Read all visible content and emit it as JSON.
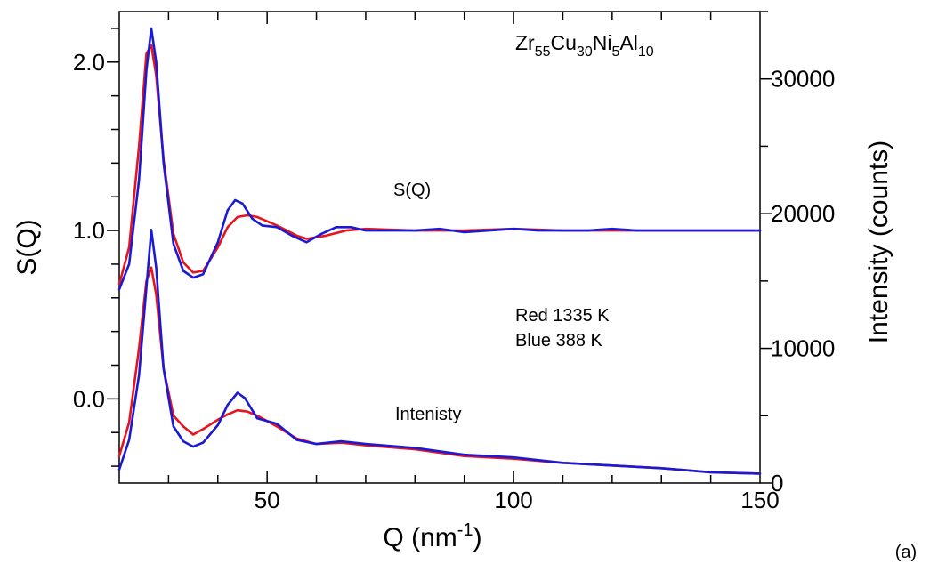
{
  "chart_data": {
    "type": "line",
    "title": "",
    "xlabel": {
      "base": "Q (nm",
      "sup": "-1",
      "end": ")"
    },
    "ylabel_left": "S(Q)",
    "ylabel_right": "Intensity (counts)",
    "xlim": [
      20,
      150
    ],
    "ylim_left": [
      -0.5,
      2.3
    ],
    "ylim_right": [
      0,
      35000
    ],
    "x_ticks": [
      50,
      100,
      150
    ],
    "x_tick_labels": [
      "50",
      "100",
      "150"
    ],
    "y_left_ticks": [
      0.0,
      1.0,
      2.0
    ],
    "y_left_tick_labels": [
      "0.0",
      "1.0",
      "2.0"
    ],
    "y_right_ticks": [
      0,
      10000,
      20000,
      30000
    ],
    "y_right_tick_labels": [
      "0",
      "10000",
      "20000",
      "30000"
    ],
    "grid": false,
    "panel_label": "(a)",
    "annotations": {
      "composition": {
        "parts": [
          {
            "t": "Zr",
            "sub": false
          },
          {
            "t": "55",
            "sub": true
          },
          {
            "t": "Cu",
            "sub": false
          },
          {
            "t": "30",
            "sub": true
          },
          {
            "t": "Ni",
            "sub": false
          },
          {
            "t": "5",
            "sub": true
          },
          {
            "t": "Al",
            "sub": false
          },
          {
            "t": "10",
            "sub": true
          }
        ]
      },
      "sq_label": "S(Q)",
      "intensity_label": "Intenisty",
      "legend_red": "Red 1335 K",
      "legend_blue": "Blue 388 K"
    },
    "series": [
      {
        "axis": "left",
        "color": "#e8141c",
        "x": [
          20,
          22,
          24,
          25.5,
          26.5,
          27.5,
          29,
          31,
          33,
          35,
          37,
          40,
          42,
          44,
          46,
          48,
          52,
          56,
          58,
          62,
          66,
          70,
          80,
          90,
          100,
          110,
          120,
          130,
          140,
          150
        ],
        "y": [
          0.68,
          0.9,
          1.5,
          2.05,
          2.1,
          1.92,
          1.42,
          0.98,
          0.81,
          0.75,
          0.76,
          0.9,
          1.02,
          1.08,
          1.09,
          1.08,
          1.03,
          0.97,
          0.95,
          0.97,
          1.0,
          1.01,
          1.0,
          1.0,
          1.01,
          1.0,
          1.0,
          1.0,
          1.0,
          1.0
        ]
      },
      {
        "axis": "left",
        "color": "#1a1ad4",
        "x": [
          20,
          22,
          24,
          25.5,
          26.5,
          27.5,
          29,
          31,
          33,
          35,
          37,
          40,
          42,
          43.5,
          45,
          47,
          49,
          52,
          55,
          58,
          61,
          64,
          67,
          70,
          75,
          80,
          85,
          90,
          95,
          100,
          105,
          110,
          115,
          120,
          125,
          130,
          140,
          150
        ],
        "y": [
          0.65,
          0.8,
          1.3,
          1.95,
          2.2,
          2.0,
          1.4,
          0.92,
          0.76,
          0.72,
          0.74,
          0.93,
          1.12,
          1.18,
          1.16,
          1.07,
          1.03,
          1.02,
          0.97,
          0.93,
          0.98,
          1.02,
          1.02,
          1.0,
          1.0,
          1.0,
          1.01,
          0.99,
          1.0,
          1.01,
          1.0,
          1.0,
          1.0,
          1.01,
          1.0,
          1.0,
          1.0,
          1.0
        ]
      },
      {
        "axis": "right",
        "color": "#e8141c",
        "x": [
          20,
          22,
          24,
          25.5,
          26.5,
          27.5,
          29,
          31,
          33,
          35,
          37,
          40,
          42,
          44,
          46,
          48,
          52,
          56,
          60,
          65,
          70,
          80,
          90,
          100,
          110,
          120,
          130,
          140,
          150
        ],
        "y": [
          2000,
          4500,
          10000,
          15000,
          16000,
          14000,
          8500,
          5000,
          4200,
          3600,
          4000,
          4700,
          5100,
          5400,
          5300,
          5000,
          4200,
          3300,
          2900,
          3000,
          2800,
          2500,
          2000,
          1800,
          1500,
          1300,
          1100,
          800,
          700
        ]
      },
      {
        "axis": "right",
        "color": "#1a1ad4",
        "x": [
          20,
          22,
          24,
          25.5,
          26.5,
          27.5,
          29,
          31,
          33,
          35,
          37,
          40,
          42,
          44,
          45.5,
          48,
          52,
          56,
          60,
          65,
          70,
          80,
          90,
          100,
          110,
          120,
          130,
          140,
          150
        ],
        "y": [
          1000,
          3200,
          8000,
          14500,
          18800,
          16000,
          8500,
          4200,
          3100,
          2700,
          3000,
          4300,
          5800,
          6700,
          6300,
          4800,
          4400,
          3200,
          2900,
          3100,
          2900,
          2600,
          2100,
          1900,
          1500,
          1300,
          1100,
          800,
          700
        ]
      }
    ]
  }
}
